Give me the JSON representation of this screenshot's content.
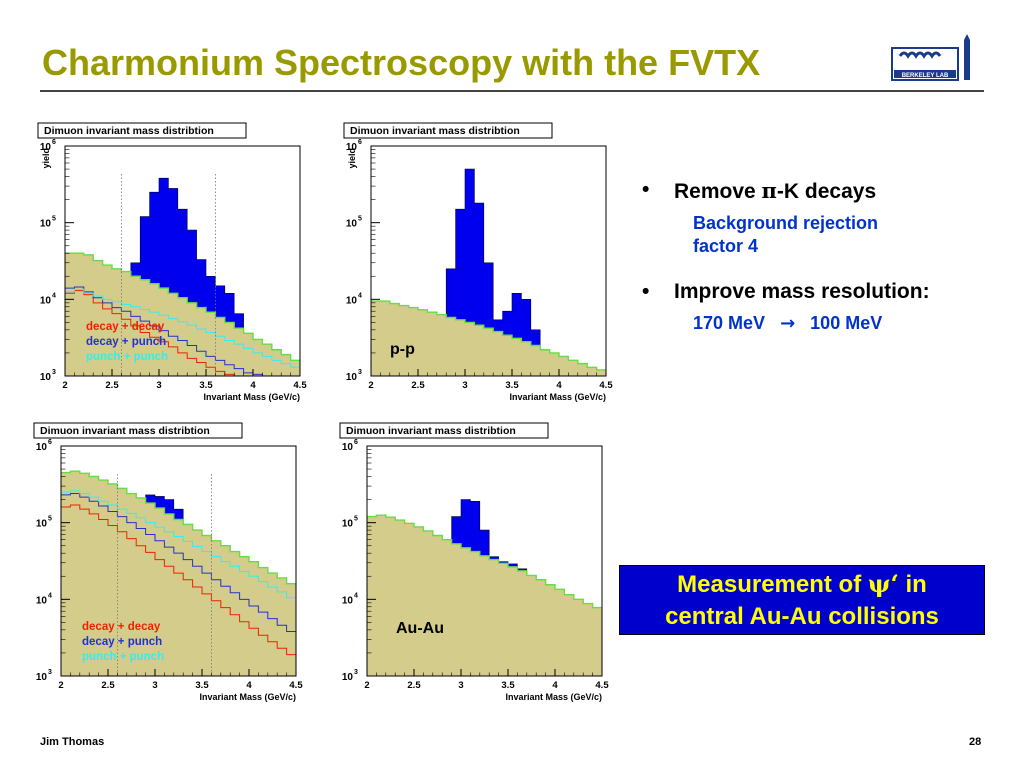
{
  "slide": {
    "title": "Charmonium Spectroscopy with the FVTX",
    "footer_left": "Jim Thomas",
    "page_number": "28"
  },
  "logo": {
    "text": "BERKELEY LAB"
  },
  "bullets": [
    {
      "prefix": "Remove ",
      "symbol": "π",
      "suffix": "-K decays",
      "sub": [
        "Background rejection",
        "factor 4"
      ]
    },
    {
      "prefix": "Improve mass resolution:",
      "sub_from": "170 MeV",
      "sub_arrow": "→",
      "sub_to": "100 MeV"
    }
  ],
  "measurement_box": {
    "line1_prefix": "Measurement of ",
    "line1_symbol": "ψ‘",
    "line1_suffix": " in",
    "line2": "central Au-Au collisions"
  },
  "colors": {
    "title": "#999900",
    "fill": "#d4cc8a",
    "signal": "#0000ee",
    "decay_decay": "#ee2200",
    "decay_punch": "#2233cc",
    "punch_punch": "#33eeee",
    "total_line": "#66dd44"
  },
  "chart_data": [
    {
      "type": "area",
      "title": "Dimuon invariant mass distribtion",
      "xlabel": "Invariant Mass (GeV/c)",
      "ylabel": "yield",
      "log_y": true,
      "xlim": [
        2,
        4.5
      ],
      "ylim": [
        1000,
        1000000
      ],
      "x_ticks": [
        "2",
        "2.5",
        "3",
        "3.5",
        "4",
        "4.5"
      ],
      "y_ticks": [
        "10^3",
        "10^4",
        "10^5",
        "10^6"
      ],
      "mass_window_lines": [
        2.6,
        3.6
      ],
      "panel_label": "",
      "x_edges": [
        2,
        2.1,
        2.2,
        2.3,
        2.4,
        2.5,
        2.6,
        2.7,
        2.8,
        2.9,
        3.0,
        3.1,
        3.2,
        3.3,
        3.4,
        3.5,
        3.6,
        3.7,
        3.8,
        3.9,
        4.0,
        4.1,
        4.2,
        4.3,
        4.4,
        4.5
      ],
      "series": [
        {
          "name": "background",
          "values": [
            40000,
            40000,
            38000,
            32000,
            28000,
            25000,
            23000,
            20000,
            18000,
            16000,
            14000,
            12000,
            10500,
            9000,
            7800,
            6800,
            5800,
            5000,
            4200,
            3600,
            3000,
            2600,
            2200,
            1900,
            1600
          ]
        },
        {
          "name": "signal",
          "values": [
            40000,
            40000,
            38000,
            32000,
            28000,
            23000,
            23000,
            30000,
            120000,
            250000,
            380000,
            280000,
            150000,
            80000,
            33000,
            20000,
            15000,
            12000,
            6500,
            3600,
            3000,
            2600,
            2200,
            1900,
            1600
          ]
        },
        {
          "name": "decay + decay",
          "values": [
            12000,
            13000,
            11500,
            9000,
            7500,
            6500,
            5500,
            4500,
            3700,
            3200,
            2800,
            2400,
            2000,
            1700,
            1500,
            1300,
            1150,
            1050,
            1000,
            1000,
            1000,
            1000,
            1000,
            1000,
            1000
          ]
        },
        {
          "name": "decay + punch",
          "values": [
            14000,
            14500,
            12500,
            10500,
            9000,
            7800,
            7000,
            6000,
            5200,
            4500,
            3900,
            3300,
            2900,
            2500,
            2100,
            1800,
            1600,
            1400,
            1250,
            1100,
            1050,
            1000,
            1000,
            1000,
            1000
          ]
        },
        {
          "name": "punch + punch",
          "values": [
            12500,
            13500,
            12000,
            11000,
            10000,
            9300,
            8600,
            8000,
            7400,
            6800,
            6200,
            5600,
            5100,
            4600,
            4100,
            3700,
            3300,
            2900,
            2600,
            2300,
            2000,
            1800,
            1600,
            1450,
            1300
          ]
        }
      ],
      "legend": [
        "decay + decay",
        "decay + punch",
        "punch + punch"
      ]
    },
    {
      "type": "area",
      "title": "Dimuon invariant mass distribtion",
      "xlabel": "Invariant Mass (GeV/c)",
      "ylabel": "yield",
      "log_y": true,
      "xlim": [
        2,
        4.5
      ],
      "ylim": [
        1000,
        1000000
      ],
      "x_ticks": [
        "2",
        "2.5",
        "3",
        "3.5",
        "4",
        "4.5"
      ],
      "y_ticks": [
        "10^3",
        "10^4",
        "10^5",
        "10^6"
      ],
      "mass_window_lines": [],
      "panel_label": "p-p",
      "x_edges": [
        2,
        2.1,
        2.2,
        2.3,
        2.4,
        2.5,
        2.6,
        2.7,
        2.8,
        2.9,
        3.0,
        3.1,
        3.2,
        3.3,
        3.4,
        3.5,
        3.6,
        3.7,
        3.8,
        3.9,
        4.0,
        4.1,
        4.2,
        4.3,
        4.4,
        4.5
      ],
      "series": [
        {
          "name": "background",
          "values": [
            9500,
            9500,
            8800,
            8300,
            7800,
            7300,
            6800,
            6300,
            5800,
            5400,
            5000,
            4600,
            4200,
            3800,
            3400,
            3100,
            2800,
            2500,
            2200,
            2000,
            1800,
            1600,
            1450,
            1300,
            1200
          ]
        },
        {
          "name": "signal",
          "values": [
            9500,
            9500,
            8800,
            8300,
            7800,
            7300,
            6800,
            6300,
            25000,
            150000,
            500000,
            180000,
            30000,
            5400,
            7000,
            12000,
            10000,
            4000,
            2200,
            2000,
            1800,
            1600,
            1450,
            1300,
            1200
          ]
        }
      ],
      "legend": []
    },
    {
      "type": "area",
      "title": "Dimuon invariant mass distribtion",
      "xlabel": "Invariant Mass (GeV/c)",
      "ylabel": "",
      "log_y": true,
      "xlim": [
        2,
        4.5
      ],
      "ylim": [
        1000,
        1000000
      ],
      "x_ticks": [
        "2",
        "2.5",
        "3",
        "3.5",
        "4",
        "4.5"
      ],
      "y_ticks": [
        "10^3",
        "10^4",
        "10^5",
        "10^6"
      ],
      "mass_window_lines": [
        2.6,
        3.6
      ],
      "panel_label": "",
      "x_edges": [
        2,
        2.1,
        2.2,
        2.3,
        2.4,
        2.5,
        2.6,
        2.7,
        2.8,
        2.9,
        3.0,
        3.1,
        3.2,
        3.3,
        3.4,
        3.5,
        3.6,
        3.7,
        3.8,
        3.9,
        4.0,
        4.1,
        4.2,
        4.3,
        4.4,
        4.5
      ],
      "series": [
        {
          "name": "background",
          "values": [
            450000,
            470000,
            440000,
            400000,
            360000,
            320000,
            280000,
            240000,
            210000,
            180000,
            155000,
            130000,
            110000,
            95000,
            80000,
            68000,
            58000,
            50000,
            42000,
            36000,
            31000,
            26000,
            22000,
            19000,
            16000
          ]
        },
        {
          "name": "signal",
          "values": [
            450000,
            470000,
            440000,
            400000,
            360000,
            320000,
            280000,
            240000,
            210000,
            230000,
            220000,
            200000,
            150000,
            95000,
            80000,
            68000,
            58000,
            50000,
            42000,
            36000,
            31000,
            26000,
            22000,
            19000,
            16000
          ]
        },
        {
          "name": "decay + decay",
          "values": [
            160000,
            170000,
            150000,
            130000,
            110000,
            92000,
            76000,
            62000,
            50000,
            41000,
            33000,
            27000,
            22000,
            18000,
            14500,
            11800,
            9600,
            7800,
            6300,
            5100,
            4200,
            3400,
            2800,
            2300,
            1900
          ]
        },
        {
          "name": "decay + punch",
          "values": [
            230000,
            240000,
            215000,
            190000,
            165000,
            140000,
            120000,
            100000,
            84000,
            70000,
            58000,
            48000,
            40000,
            33000,
            27000,
            22000,
            18000,
            14800,
            12200,
            10000,
            8200,
            6800,
            5600,
            4600,
            3800
          ]
        },
        {
          "name": "punch + punch",
          "values": [
            250000,
            260000,
            240000,
            215000,
            190000,
            170000,
            150000,
            132000,
            116000,
            100000,
            87000,
            76000,
            66000,
            57000,
            49000,
            42000,
            36000,
            31000,
            27000,
            23000,
            20000,
            17000,
            14500,
            12500,
            10500
          ]
        }
      ],
      "legend": [
        "decay + decay",
        "decay + punch",
        "punch + punch"
      ]
    },
    {
      "type": "area",
      "title": "Dimuon invariant mass distribtion",
      "xlabel": "Invariant Mass (GeV/c)",
      "ylabel": "",
      "log_y": true,
      "xlim": [
        2,
        4.5
      ],
      "ylim": [
        1000,
        1000000
      ],
      "x_ticks": [
        "2",
        "2.5",
        "3",
        "3.5",
        "4",
        "4.5"
      ],
      "y_ticks": [
        "10^3",
        "10^4",
        "10^5",
        "10^6"
      ],
      "mass_window_lines": [],
      "panel_label": "Au-Au",
      "x_edges": [
        2,
        2.1,
        2.2,
        2.3,
        2.4,
        2.5,
        2.6,
        2.7,
        2.8,
        2.9,
        3.0,
        3.1,
        3.2,
        3.3,
        3.4,
        3.5,
        3.6,
        3.7,
        3.8,
        3.9,
        4.0,
        4.1,
        4.2,
        4.3,
        4.4,
        4.5
      ],
      "series": [
        {
          "name": "background",
          "values": [
            120000,
            125000,
            118000,
            108000,
            98000,
            88000,
            78000,
            68000,
            60000,
            53000,
            47000,
            42000,
            37000,
            33000,
            29500,
            26500,
            23500,
            20500,
            18000,
            15500,
            13500,
            11500,
            10000,
            8800,
            7800
          ]
        },
        {
          "name": "signal",
          "values": [
            120000,
            125000,
            118000,
            108000,
            98000,
            88000,
            78000,
            68000,
            60000,
            120000,
            200000,
            190000,
            80000,
            36000,
            31000,
            29000,
            25000,
            20500,
            18000,
            15500,
            13500,
            11500,
            10000,
            8800,
            7800
          ]
        }
      ],
      "legend": []
    }
  ]
}
